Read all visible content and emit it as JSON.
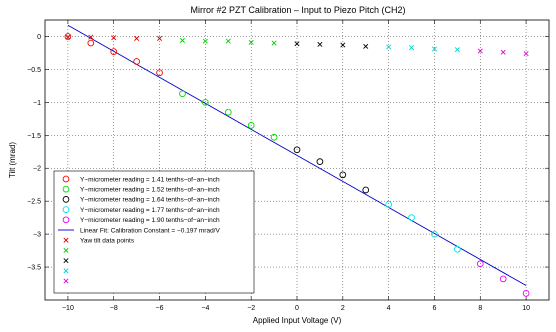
{
  "chart_data": {
    "type": "scatter",
    "title": "Mirror #2 PZT Calibration – Input to Piezo Pitch (CH2)",
    "xlabel": "Applied Input Voltage (V)",
    "ylabel": "Tilt (mrad)",
    "xlim": [
      -11,
      11
    ],
    "ylim": [
      -4,
      0.25
    ],
    "xticks": [
      -10,
      -8,
      -6,
      -4,
      -2,
      0,
      2,
      4,
      6,
      8,
      10
    ],
    "yticks": [
      0,
      -0.5,
      -1,
      -1.5,
      -2,
      -2.5,
      -3,
      -3.5
    ],
    "xtick_labels": [
      "−10",
      "−8",
      "−6",
      "−4",
      "−2",
      "0",
      "2",
      "4",
      "6",
      "8",
      "10"
    ],
    "ytick_labels": [
      "0",
      "−0.5",
      "−1",
      "−1.5",
      "−2",
      "−2.5",
      "−3",
      "−3.5"
    ],
    "grid": true,
    "legend_position": "bottom-left",
    "series": [
      {
        "name": "Y−micrometer reading = 1.41 tenths−of−an−inch",
        "marker": "circle",
        "color": "#ff0000",
        "x": [
          -10,
          -9,
          -8,
          -7,
          -6
        ],
        "y": [
          0.0,
          -0.1,
          -0.23,
          -0.38,
          -0.55
        ]
      },
      {
        "name": "Y−micrometer reading = 1.52 tenths−of−an−inch",
        "marker": "circle",
        "color": "#00dd00",
        "x": [
          -5,
          -4,
          -3,
          -2,
          -1
        ],
        "y": [
          -0.87,
          -1.0,
          -1.15,
          -1.35,
          -1.53
        ]
      },
      {
        "name": "Y−micrometer reading = 1.64 tenths−of−an−inch",
        "marker": "circle",
        "color": "#000000",
        "x": [
          0,
          1,
          2,
          3
        ],
        "y": [
          -1.72,
          -1.9,
          -2.1,
          -2.33
        ]
      },
      {
        "name": "Y−micrometer reading = 1.77 tenths−of−an−inch",
        "marker": "circle",
        "color": "#00e5e5",
        "x": [
          4,
          5,
          6,
          7
        ],
        "y": [
          -2.55,
          -2.75,
          -3.0,
          -3.23
        ]
      },
      {
        "name": "Y−micrometer reading = 1.90 tenths−of−an−inch",
        "marker": "circle",
        "color": "#ee00ee",
        "x": [
          8,
          9,
          10
        ],
        "y": [
          -3.45,
          -3.68,
          -3.9
        ]
      },
      {
        "name": "Yaw tilt data points",
        "marker": "x",
        "color": "#dd0000",
        "x": [
          -10,
          -9,
          -8,
          -7,
          -6
        ],
        "y": [
          -0.01,
          -0.01,
          -0.02,
          -0.03,
          -0.03
        ]
      },
      {
        "name": "",
        "marker": "x",
        "color": "#00cc00",
        "x": [
          -5,
          -4,
          -3,
          -2,
          -1
        ],
        "y": [
          -0.06,
          -0.07,
          -0.07,
          -0.09,
          -0.1
        ]
      },
      {
        "name": "",
        "marker": "x",
        "color": "#000000",
        "x": [
          0,
          1,
          2,
          3
        ],
        "y": [
          -0.11,
          -0.12,
          -0.13,
          -0.15
        ]
      },
      {
        "name": "",
        "marker": "x",
        "color": "#00d5d5",
        "x": [
          4,
          5,
          6,
          7
        ],
        "y": [
          -0.16,
          -0.17,
          -0.19,
          -0.2
        ]
      },
      {
        "name": "",
        "marker": "x",
        "color": "#dd00dd",
        "x": [
          8,
          9,
          10
        ],
        "y": [
          -0.22,
          -0.24,
          -0.26
        ]
      }
    ],
    "fit_line": {
      "name": "Linear Fit: Calibration Constant = −0.197 mrad/V",
      "color": "#0000cc",
      "x": [
        -10,
        10
      ],
      "y": [
        0.17,
        -3.78
      ]
    }
  }
}
